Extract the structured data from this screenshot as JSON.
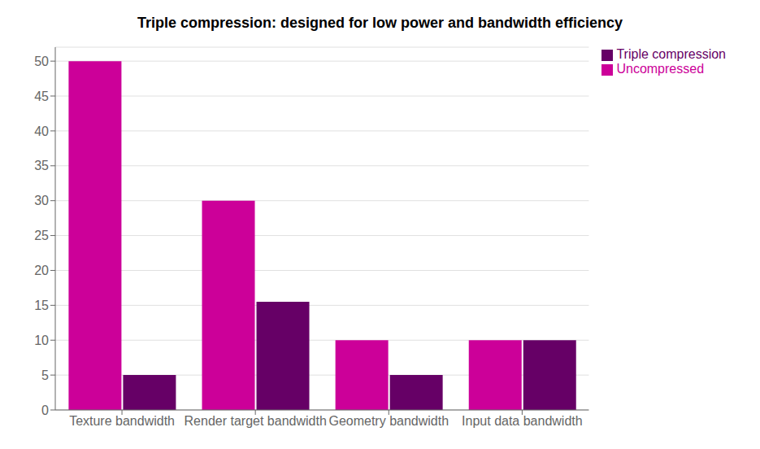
{
  "chart_data": {
    "type": "bar",
    "title": "Triple compression: designed for low power and bandwidth efficiency",
    "categories": [
      "Texture bandwidth",
      "Render target bandwidth",
      "Geometry bandwidth",
      "Input data bandwidth"
    ],
    "series": [
      {
        "name": "Uncompressed",
        "color": "#CC0099",
        "values": [
          50,
          30,
          10,
          10
        ]
      },
      {
        "name": "Triple compression",
        "color": "#660066",
        "values": [
          5,
          15.5,
          5,
          10
        ]
      }
    ],
    "ylim": [
      0,
      52
    ],
    "yticks": [
      0,
      5,
      10,
      15,
      20,
      25,
      30,
      35,
      40,
      45,
      50
    ],
    "grid": true,
    "legend": "upper right"
  }
}
